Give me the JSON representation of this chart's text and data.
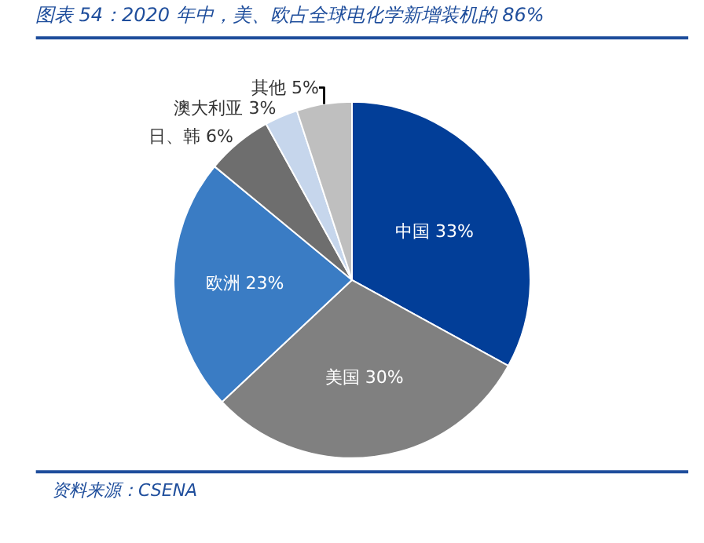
{
  "chart_data": {
    "type": "pie",
    "title": "图表 54：2020 年中，美、欧占全球电化学新增装机的 86%",
    "categories": [
      "中国",
      "美国",
      "欧洲",
      "日、韩",
      "澳大利亚",
      "其他"
    ],
    "values": [
      33,
      30,
      23,
      6,
      3,
      5
    ],
    "value_labels": [
      "33%",
      "30%",
      "23%",
      "6%",
      "3%",
      "5%"
    ],
    "colors": [
      "#023e98",
      "#808080",
      "#3a7cc4",
      "#6e6e6e",
      "#c6d6ec",
      "#bfbfbf"
    ],
    "annotations": [
      "资料来源：CSENA"
    ],
    "legend": false
  }
}
